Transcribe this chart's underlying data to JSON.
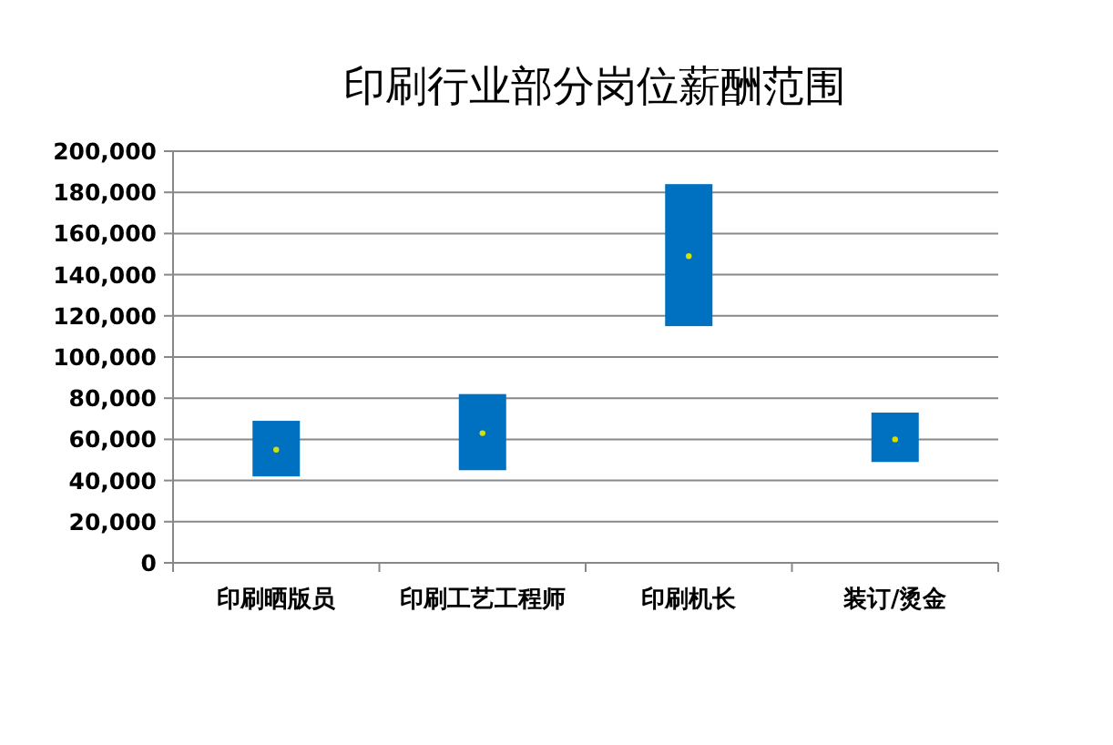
{
  "chart_data": {
    "type": "bar",
    "title": "印刷行业部分岗位薪酬范围",
    "categories": [
      "印刷晒版员",
      "印刷工艺工程师",
      "印刷机长",
      "装订/烫金"
    ],
    "series": [
      {
        "color": "#0070c0",
        "base": [
          42000,
          45000,
          115000,
          49000
        ],
        "values": [
          27000,
          37000,
          69000,
          24000
        ]
      },
      {
        "type": "scatter",
        "color": "#d4e000",
        "x": [
          "印刷晒版员",
          "印刷工艺工程师",
          "印刷机长",
          "装订/烫金"
        ],
        "values": [
          55000,
          63000,
          149000,
          60000
        ]
      }
    ],
    "marker": "circle",
    "ylim": [
      0,
      200000
    ],
    "yticks": [
      0,
      {
        "value": 20000,
        "label": "20,000"
      },
      {
        "value": 40000,
        "label": "40,000"
      },
      {
        "value": 60000,
        "label": "60,000"
      },
      {
        "value": 80000,
        "label": "80,000"
      },
      {
        "value": 100000,
        "label": "100,000"
      },
      {
        "value": 120000,
        "label": "120,000"
      },
      {
        "value": 140000,
        "label": "140,000"
      },
      {
        "value": 160000,
        "label": "160,000"
      },
      {
        "value": 180000,
        "label": "180,000"
      },
      {
        "value": 200000,
        "label": "200,000"
      }
    ],
    "grid": "y"
  }
}
